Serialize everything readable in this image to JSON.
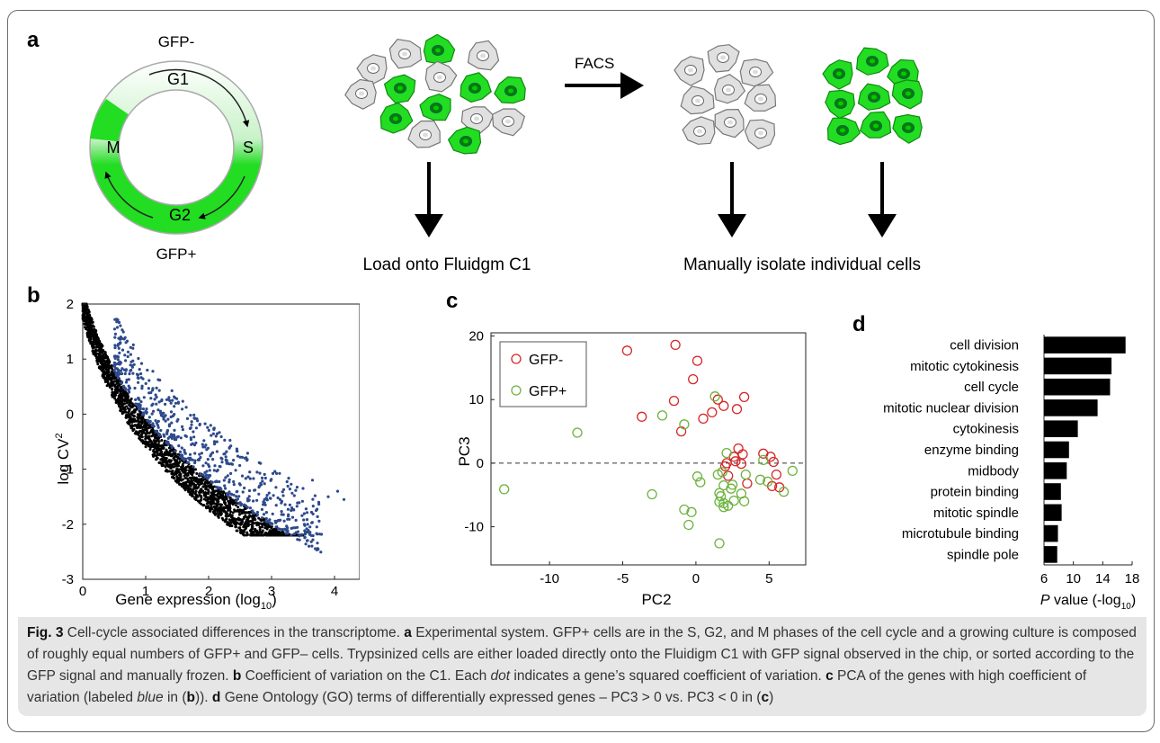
{
  "panel_a": {
    "label": "a",
    "cycle": {
      "top_label": "GFP-",
      "bottom_label": "GFP+",
      "phases": [
        "G1",
        "S",
        "G2",
        "M"
      ]
    },
    "facs_label": "FACS",
    "load_label": "Load onto Fluidgm C1",
    "isolate_label": "Manually isolate individual cells",
    "colors": {
      "gfp_green": "#22dd22",
      "gray_cell": "#e0e0e0"
    }
  },
  "chart_data": [
    {
      "panel": "b",
      "type": "scatter",
      "xlabel": "Gene expression (log",
      "xlabel_sub": "10",
      "ylabel": "log CV",
      "ylabel_sup": "2",
      "xlim": [
        0,
        4.4
      ],
      "ylim": [
        -3,
        2
      ],
      "xticks": [
        "0",
        "1",
        "2",
        "3",
        "4"
      ],
      "yticks": [
        "2",
        "1",
        "0",
        "-1",
        "-2",
        "-3"
      ],
      "series": [
        {
          "color": "#000000"
        },
        {
          "color": "#2e4a8c"
        }
      ]
    },
    {
      "panel": "c",
      "type": "scatter",
      "xlabel": "PC2",
      "ylabel": "PC3",
      "xlim": [
        -14,
        7.5
      ],
      "ylim": [
        -16,
        20.5
      ],
      "xticks": [
        "-10",
        "-5",
        "0",
        "5"
      ],
      "yticks": [
        "20",
        "10",
        "0",
        "-10"
      ],
      "legend_position": "top-left",
      "series": [
        {
          "name": "GFP-",
          "color": "#d62728",
          "points": [
            [
              -4.7,
              17.7
            ],
            [
              -1.4,
              18.6
            ],
            [
              0.1,
              16.1
            ],
            [
              -0.2,
              13.2
            ],
            [
              -1.5,
              9.8
            ],
            [
              -3.7,
              7.3
            ],
            [
              -1,
              5
            ],
            [
              0.5,
              7
            ],
            [
              1.1,
              8
            ],
            [
              1.5,
              10
            ],
            [
              1.9,
              9
            ],
            [
              2.8,
              8.5
            ],
            [
              3.3,
              10.4
            ],
            [
              2.9,
              2.3
            ],
            [
              3.2,
              1.4
            ],
            [
              2.6,
              1
            ],
            [
              2.7,
              0.3
            ],
            [
              3.1,
              -0.1
            ],
            [
              2.1,
              0
            ],
            [
              2,
              -0.5
            ],
            [
              2.2,
              -2
            ],
            [
              3.5,
              -3.2
            ],
            [
              4.6,
              1.5
            ],
            [
              5.1,
              1
            ],
            [
              5.3,
              0.2
            ],
            [
              5.5,
              -1.8
            ],
            [
              5.7,
              -3.8
            ],
            [
              5.2,
              -3.6
            ]
          ]
        },
        {
          "name": "GFP+",
          "color": "#6db33f",
          "points": [
            [
              -13.1,
              -4.1
            ],
            [
              -8.1,
              4.8
            ],
            [
              -3,
              -4.9
            ],
            [
              -2.3,
              7.5
            ],
            [
              -0.8,
              6.1
            ],
            [
              1.3,
              10.5
            ],
            [
              2.1,
              1.6
            ],
            [
              1.5,
              -1.8
            ],
            [
              1.8,
              -1.4
            ],
            [
              0.1,
              -2.1
            ],
            [
              0.3,
              -3
            ],
            [
              1.9,
              -3.5
            ],
            [
              2.5,
              -3.4
            ],
            [
              1.6,
              -4.7
            ],
            [
              2.4,
              -4
            ],
            [
              3.1,
              -4.8
            ],
            [
              3.3,
              -6
            ],
            [
              2.6,
              -5.9
            ],
            [
              1.7,
              -5.2
            ],
            [
              1.6,
              -6.1
            ],
            [
              1.9,
              -6.3
            ],
            [
              2.2,
              -6.7
            ],
            [
              1.9,
              -6.9
            ],
            [
              -0.8,
              -7.3
            ],
            [
              -0.3,
              -7.7
            ],
            [
              -0.5,
              -9.7
            ],
            [
              1.6,
              -12.6
            ],
            [
              4.4,
              -2.6
            ],
            [
              4.9,
              -2.9
            ],
            [
              6.0,
              -4.5
            ],
            [
              6.6,
              -1.2
            ],
            [
              3.4,
              -1.8
            ],
            [
              4.6,
              0.5
            ]
          ]
        }
      ]
    },
    {
      "panel": "d",
      "type": "bar",
      "orientation": "horizontal",
      "categories": [
        "cell division",
        "mitotic cytokinesis",
        "cell cycle",
        "mitotic nuclear division",
        "cytokinesis",
        "enzyme binding",
        "midbody",
        "protein binding",
        "mitotic spindle",
        "microtubule binding",
        "spindle pole"
      ],
      "values": [
        17.1,
        15.2,
        15.0,
        13.3,
        10.6,
        9.4,
        9.1,
        8.3,
        8.4,
        7.9,
        7.8
      ],
      "xlim": [
        6,
        18
      ],
      "xticks": [
        "6",
        "10",
        "14",
        "18"
      ],
      "xlabel_italic": "P",
      "xlabel": " value (-log",
      "xlabel_sub": "10",
      "color": "#000000"
    }
  ],
  "panel_labels": {
    "b": "b",
    "c": "c",
    "d": "d"
  },
  "caption": {
    "fig_label": "Fig. 3",
    "t1": " Cell-cycle associated differences in the transcriptome. ",
    "a": "a",
    "t2": " Experimental system. GFP+ cells are in the S, G2, and M phases of the cell cycle and a growing culture is composed of roughly equal numbers of GFP+ and GFP– cells. Trypsinized cells are either loaded directly onto the Fluidigm C1 with GFP signal observed in the chip, or sorted according to the GFP signal and manually frozen. ",
    "b": "b",
    "t3": " Coefficient of variation on the C1. Each ",
    "dot": "dot",
    "t4": " indicates a gene’s squared coefficient of variation. ",
    "c": "c",
    "t5": " PCA of the genes with high coefficient of variation (labeled ",
    "blue": "blue",
    "t6": " in (",
    "b2": "b",
    "t7": ")). ",
    "d": "d",
    "t8": " Gene Ontology (GO) terms of differentially expressed genes – PC3 > 0 vs. PC3 < 0 in (",
    "c2": "c",
    "t9": ")"
  }
}
